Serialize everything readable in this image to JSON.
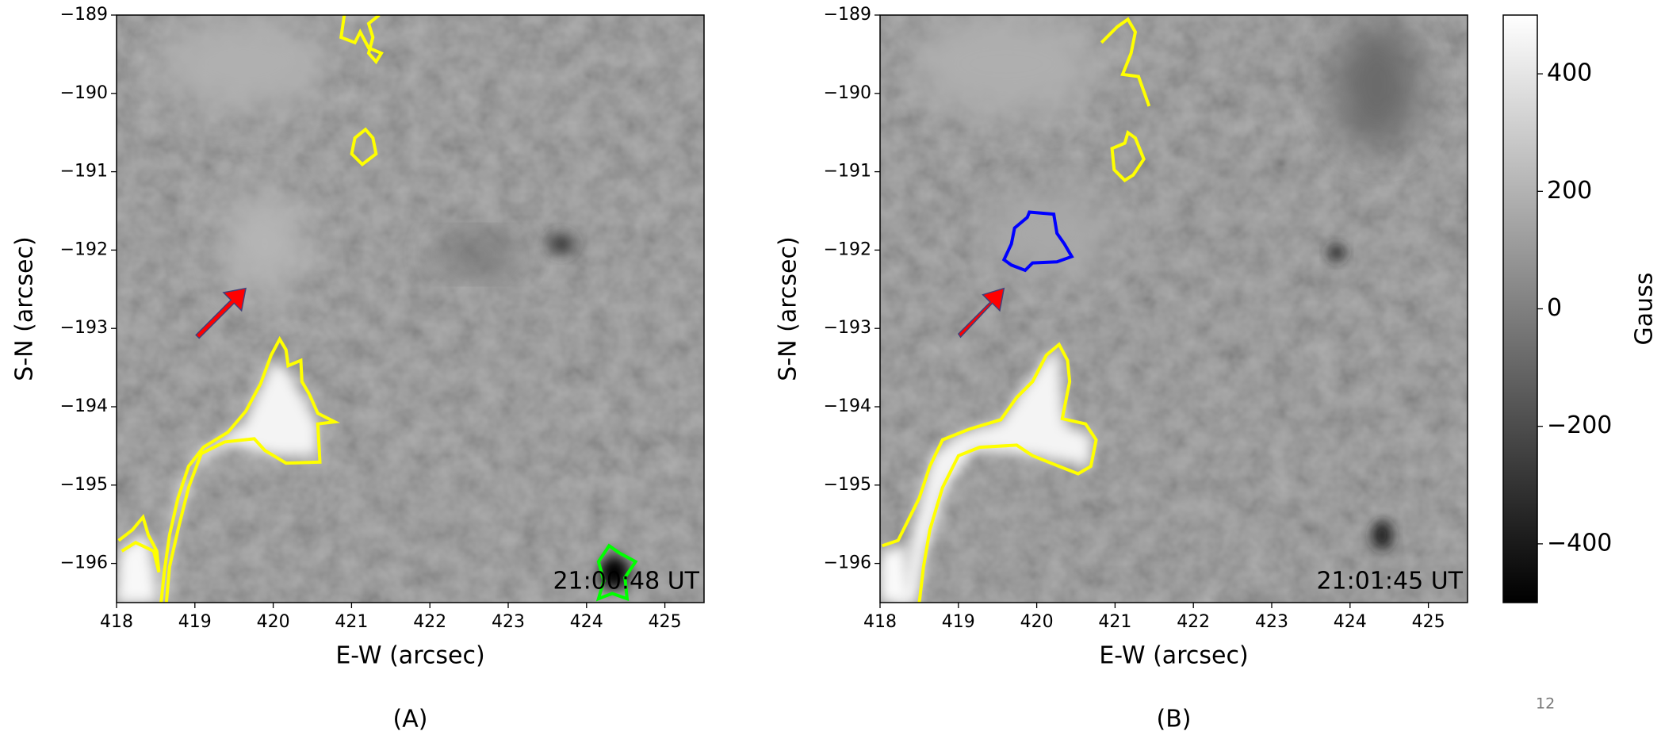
{
  "chart_data": [
    {
      "type": "image",
      "xlabel": "E-W (arcsec)",
      "ylabel": "S-N (arcsec)",
      "xlim": [
        418,
        425.5
      ],
      "ylim": [
        -196.5,
        -189
      ],
      "xticks": [
        418,
        419,
        420,
        421,
        422,
        423,
        424,
        425
      ],
      "yticks": [
        {
          "value": -189,
          "label": "−189"
        },
        {
          "value": -190,
          "label": "−190"
        },
        {
          "value": -191,
          "label": "−191"
        },
        {
          "value": -192,
          "label": "−192"
        },
        {
          "value": -193,
          "label": "−193"
        },
        {
          "value": -194,
          "label": "−194"
        },
        {
          "value": -195,
          "label": "−195"
        },
        {
          "value": -196,
          "label": "−196"
        }
      ],
      "annotation": "21:00:48 UT",
      "caption": "(A)"
    },
    {
      "type": "image",
      "xlabel": "E-W (arcsec)",
      "ylabel": "S-N (arcsec)",
      "xlim": [
        418,
        425.5
      ],
      "ylim": [
        -196.5,
        -189
      ],
      "xticks": [
        418,
        419,
        420,
        421,
        422,
        423,
        424,
        425
      ],
      "yticks": [
        {
          "value": -189,
          "label": "−189"
        },
        {
          "value": -190,
          "label": "−190"
        },
        {
          "value": -191,
          "label": "−191"
        },
        {
          "value": -192,
          "label": "−192"
        },
        {
          "value": -193,
          "label": "−193"
        },
        {
          "value": -194,
          "label": "−194"
        },
        {
          "value": -195,
          "label": "−195"
        },
        {
          "value": -196,
          "label": "−196"
        }
      ],
      "annotation": "21:01:45 UT",
      "caption": "(B)",
      "colorbar": {
        "label": "Gauss",
        "clim": [
          -500,
          500
        ],
        "ticks": [
          {
            "value": -400,
            "label": "−400"
          },
          {
            "value": -200,
            "label": "−200"
          },
          0,
          200,
          400
        ]
      }
    }
  ],
  "slide_number": "12"
}
